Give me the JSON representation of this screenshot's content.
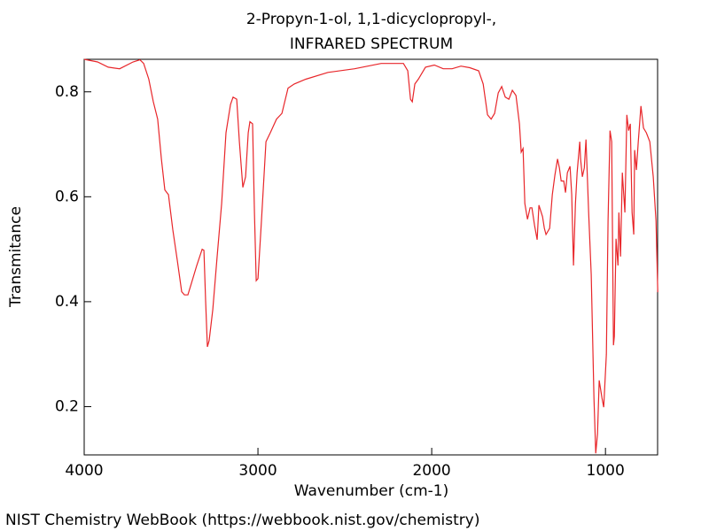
{
  "chart_data": {
    "type": "line",
    "title": "2-Propyn-1-ol, 1,1-dicyclopropyl-,",
    "subtitle": "INFRARED SPECTRUM",
    "xlabel": "Wavenumber (cm-1)",
    "ylabel": "Transmitance",
    "footer": "NIST Chemistry WebBook (https://webbook.nist.gov/chemistry)",
    "color": "#e8262a",
    "xlim": [
      4000,
      700
    ],
    "ylim": [
      0.108,
      0.862
    ],
    "xticks": [
      4000,
      3000,
      2000,
      1000
    ],
    "yticks": [
      0.2,
      0.4,
      0.6,
      0.8
    ],
    "x": [
      4000,
      3923,
      3862,
      3796,
      3719,
      3679,
      3658,
      3628,
      3602,
      3577,
      3556,
      3536,
      3515,
      3490,
      3464,
      3439,
      3423,
      3403,
      3383,
      3352,
      3321,
      3311,
      3301,
      3291,
      3281,
      3260,
      3235,
      3209,
      3184,
      3158,
      3143,
      3122,
      3107,
      3087,
      3071,
      3056,
      3046,
      3031,
      3020,
      3010,
      3000,
      2980,
      2954,
      2929,
      2893,
      2862,
      2827,
      2791,
      2725,
      2597,
      2444,
      2291,
      2163,
      2138,
      2122,
      2112,
      2097,
      2077,
      2036,
      1985,
      1934,
      1883,
      1832,
      1781,
      1730,
      1704,
      1679,
      1658,
      1638,
      1617,
      1597,
      1577,
      1556,
      1536,
      1515,
      1495,
      1485,
      1474,
      1464,
      1449,
      1434,
      1423,
      1408,
      1393,
      1383,
      1362,
      1352,
      1342,
      1321,
      1306,
      1291,
      1276,
      1265,
      1255,
      1240,
      1230,
      1219,
      1204,
      1194,
      1184,
      1173,
      1163,
      1148,
      1143,
      1133,
      1122,
      1112,
      1097,
      1082,
      1066,
      1056,
      1046,
      1036,
      1020,
      1010,
      995,
      985,
      974,
      964,
      954,
      949,
      939,
      928,
      923,
      913,
      903,
      888,
      877,
      867,
      857,
      847,
      837,
      832,
      822,
      811,
      796,
      781,
      765,
      745,
      725,
      709,
      699
    ],
    "values": [
      0.862,
      0.857,
      0.847,
      0.844,
      0.857,
      0.861,
      0.854,
      0.824,
      0.781,
      0.748,
      0.672,
      0.613,
      0.604,
      0.537,
      0.478,
      0.419,
      0.413,
      0.413,
      0.435,
      0.469,
      0.5,
      0.498,
      0.402,
      0.314,
      0.326,
      0.385,
      0.486,
      0.587,
      0.722,
      0.776,
      0.79,
      0.786,
      0.705,
      0.618,
      0.638,
      0.722,
      0.743,
      0.739,
      0.57,
      0.44,
      0.444,
      0.554,
      0.705,
      0.722,
      0.748,
      0.759,
      0.807,
      0.815,
      0.824,
      0.837,
      0.844,
      0.854,
      0.854,
      0.84,
      0.786,
      0.781,
      0.815,
      0.824,
      0.847,
      0.851,
      0.844,
      0.844,
      0.849,
      0.846,
      0.84,
      0.815,
      0.756,
      0.748,
      0.759,
      0.798,
      0.81,
      0.79,
      0.786,
      0.803,
      0.793,
      0.739,
      0.685,
      0.692,
      0.587,
      0.557,
      0.579,
      0.579,
      0.545,
      0.518,
      0.584,
      0.562,
      0.54,
      0.528,
      0.54,
      0.604,
      0.641,
      0.672,
      0.655,
      0.63,
      0.63,
      0.608,
      0.646,
      0.658,
      0.604,
      0.469,
      0.587,
      0.646,
      0.705,
      0.672,
      0.638,
      0.655,
      0.709,
      0.57,
      0.452,
      0.216,
      0.111,
      0.148,
      0.25,
      0.216,
      0.199,
      0.3,
      0.554,
      0.726,
      0.705,
      0.317,
      0.334,
      0.52,
      0.469,
      0.57,
      0.486,
      0.646,
      0.57,
      0.756,
      0.726,
      0.739,
      0.57,
      0.528,
      0.689,
      0.651,
      0.705,
      0.773,
      0.731,
      0.722,
      0.705,
      0.638,
      0.554,
      0.418
    ]
  }
}
